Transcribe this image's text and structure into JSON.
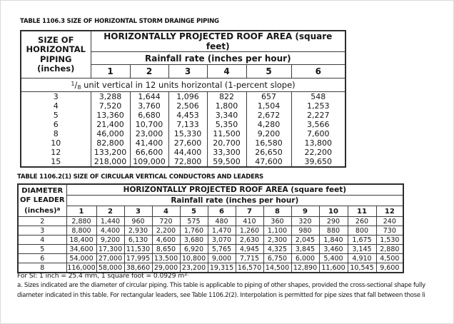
{
  "table_horizontal_piping": {
    "title": "TABLE 1106.3 SIZE OF HORIZONTAL STORM DRAINGE PIPING",
    "corner_lines": [
      "SIZE OF",
      "HORIZONTAL",
      "PIPING",
      "(inches)"
    ],
    "roof_area_header": "HORIZONTALLY PROJECTED ROOF AREA (square feet)",
    "rainfall_header": "Rainfall rate (inches per hour)",
    "rate_columns": [
      "1",
      "2",
      "3",
      "4",
      "5",
      "6"
    ],
    "slope_fraction_numerator": "1",
    "slope_fraction_slash": "/",
    "slope_fraction_denominator": "8",
    "slope_note_rest": " unit vertical in 12 units horizontal (1-percent slope)",
    "rows": [
      [
        "3",
        "3,288",
        "1,644",
        "1,096",
        "822",
        "657",
        "548"
      ],
      [
        "4",
        "7,520",
        "3,760",
        "2,506",
        "1,800",
        "1,504",
        "1,253"
      ],
      [
        "5",
        "13,360",
        "6,680",
        "4,453",
        "3,340",
        "2,672",
        "2,227"
      ],
      [
        "6",
        "21,400",
        "10,700",
        "7,133",
        "5,350",
        "4,280",
        "3,566"
      ],
      [
        "8",
        "46,000",
        "23,000",
        "15,330",
        "11,500",
        "9,200",
        "7,600"
      ],
      [
        "10",
        "82,800",
        "41,400",
        "27,600",
        "20,700",
        "16,580",
        "13,800"
      ],
      [
        "12",
        "133,200",
        "66,600",
        "44,400",
        "33,300",
        "26,650",
        "22,200"
      ],
      [
        "15",
        "218,000",
        "109,000",
        "72,800",
        "59,500",
        "47,600",
        "39,650"
      ]
    ]
  },
  "table_vertical_conductors": {
    "title": "TABLE 1106.2(1) SIZE OF CIRCULAR VERTICAL CONDUCTORS AND LEADERS",
    "corner_lines": [
      "DIAMETER",
      "OF LEADER"
    ],
    "corner_last_line": "(inches)",
    "corner_superscript": "a",
    "roof_area_header": "HORIZONTALLY PROJECTED ROOF AREA (square feet)",
    "rainfall_header": "Rainfall rate (inches per hour)",
    "rate_columns": [
      "1",
      "2",
      "3",
      "4",
      "5",
      "6",
      "7",
      "8",
      "9",
      "10",
      "11",
      "12"
    ],
    "rows": [
      [
        "2",
        "2,880",
        "1,440",
        "960",
        "720",
        "575",
        "480",
        "410",
        "360",
        "320",
        "290",
        "260",
        "240"
      ],
      [
        "3",
        "8,800",
        "4,400",
        "2,930",
        "2,200",
        "1,760",
        "1,470",
        "1,260",
        "1,100",
        "980",
        "880",
        "800",
        "730"
      ],
      [
        "4",
        "18,400",
        "9,200",
        "6,130",
        "4,600",
        "3,680",
        "3,070",
        "2,630",
        "2,300",
        "2,045",
        "1,840",
        "1,675",
        "1,530"
      ],
      [
        "5",
        "34,600",
        "17,300",
        "11,530",
        "8,650",
        "6,920",
        "5,765",
        "4,945",
        "4,325",
        "3,845",
        "3,460",
        "3,145",
        "2,880"
      ],
      [
        "6",
        "54,000",
        "27,000",
        "17,995",
        "13,500",
        "10,800",
        "9,000",
        "7,715",
        "6,750",
        "6,000",
        "5,400",
        "4,910",
        "4,500"
      ],
      [
        "8",
        "116,000",
        "58,000",
        "38,660",
        "29,000",
        "23,200",
        "19,315",
        "16,570",
        "14,500",
        "12,890",
        "11,600",
        "10,545",
        "9,600"
      ]
    ]
  },
  "footnotes": {
    "si_note_text": "For SI: 1 inch = 25.4 mm, 1 square foot = 0.0929 m",
    "si_note_superscript": "2.",
    "note_a_line1": "a. Sizes indicated are the diameter of circular piping. This table is applicable to piping of other shapes, provided the cross-sectional shape fully",
    "note_a_line2": "diameter indicated in this table. For rectangular leaders, see Table 1106.2(2). Interpolation is permitted for pipe sizes that fall between those li"
  }
}
